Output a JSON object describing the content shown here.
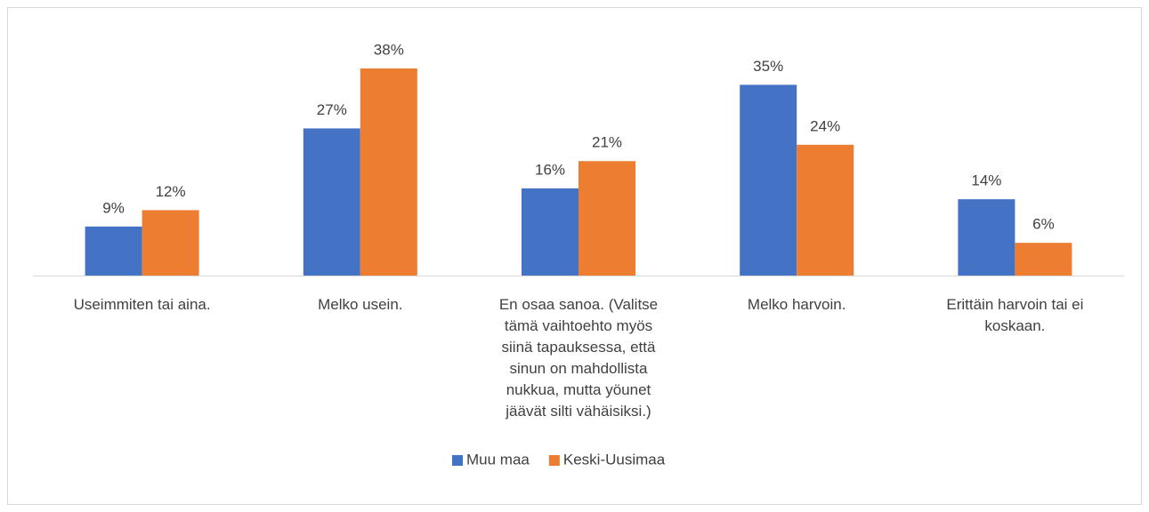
{
  "chart_data": {
    "type": "bar",
    "categories": [
      "Useimmiten tai aina.",
      "Melko usein.",
      "En osaa sanoa. (Valitse tämä vaihtoehto myös siinä tapauksessa, että sinun on mahdollista nukkua, mutta yöunet jäävät silti vähäisiksi.)",
      "Melko harvoin.",
      "Erittäin harvoin tai ei koskaan."
    ],
    "series": [
      {
        "name": "Muu maa",
        "color": "#4472c4",
        "values": [
          9,
          27,
          16,
          35,
          14
        ],
        "value_labels": [
          "9%",
          "27%",
          "16%",
          "35%",
          "14%"
        ]
      },
      {
        "name": "Keski-Uusimaa",
        "color": "#ed7d31",
        "values": [
          12,
          38,
          21,
          24,
          6
        ],
        "value_labels": [
          "12%",
          "38%",
          "21%",
          "24%",
          "6%"
        ]
      }
    ],
    "legend": "bottom"
  }
}
